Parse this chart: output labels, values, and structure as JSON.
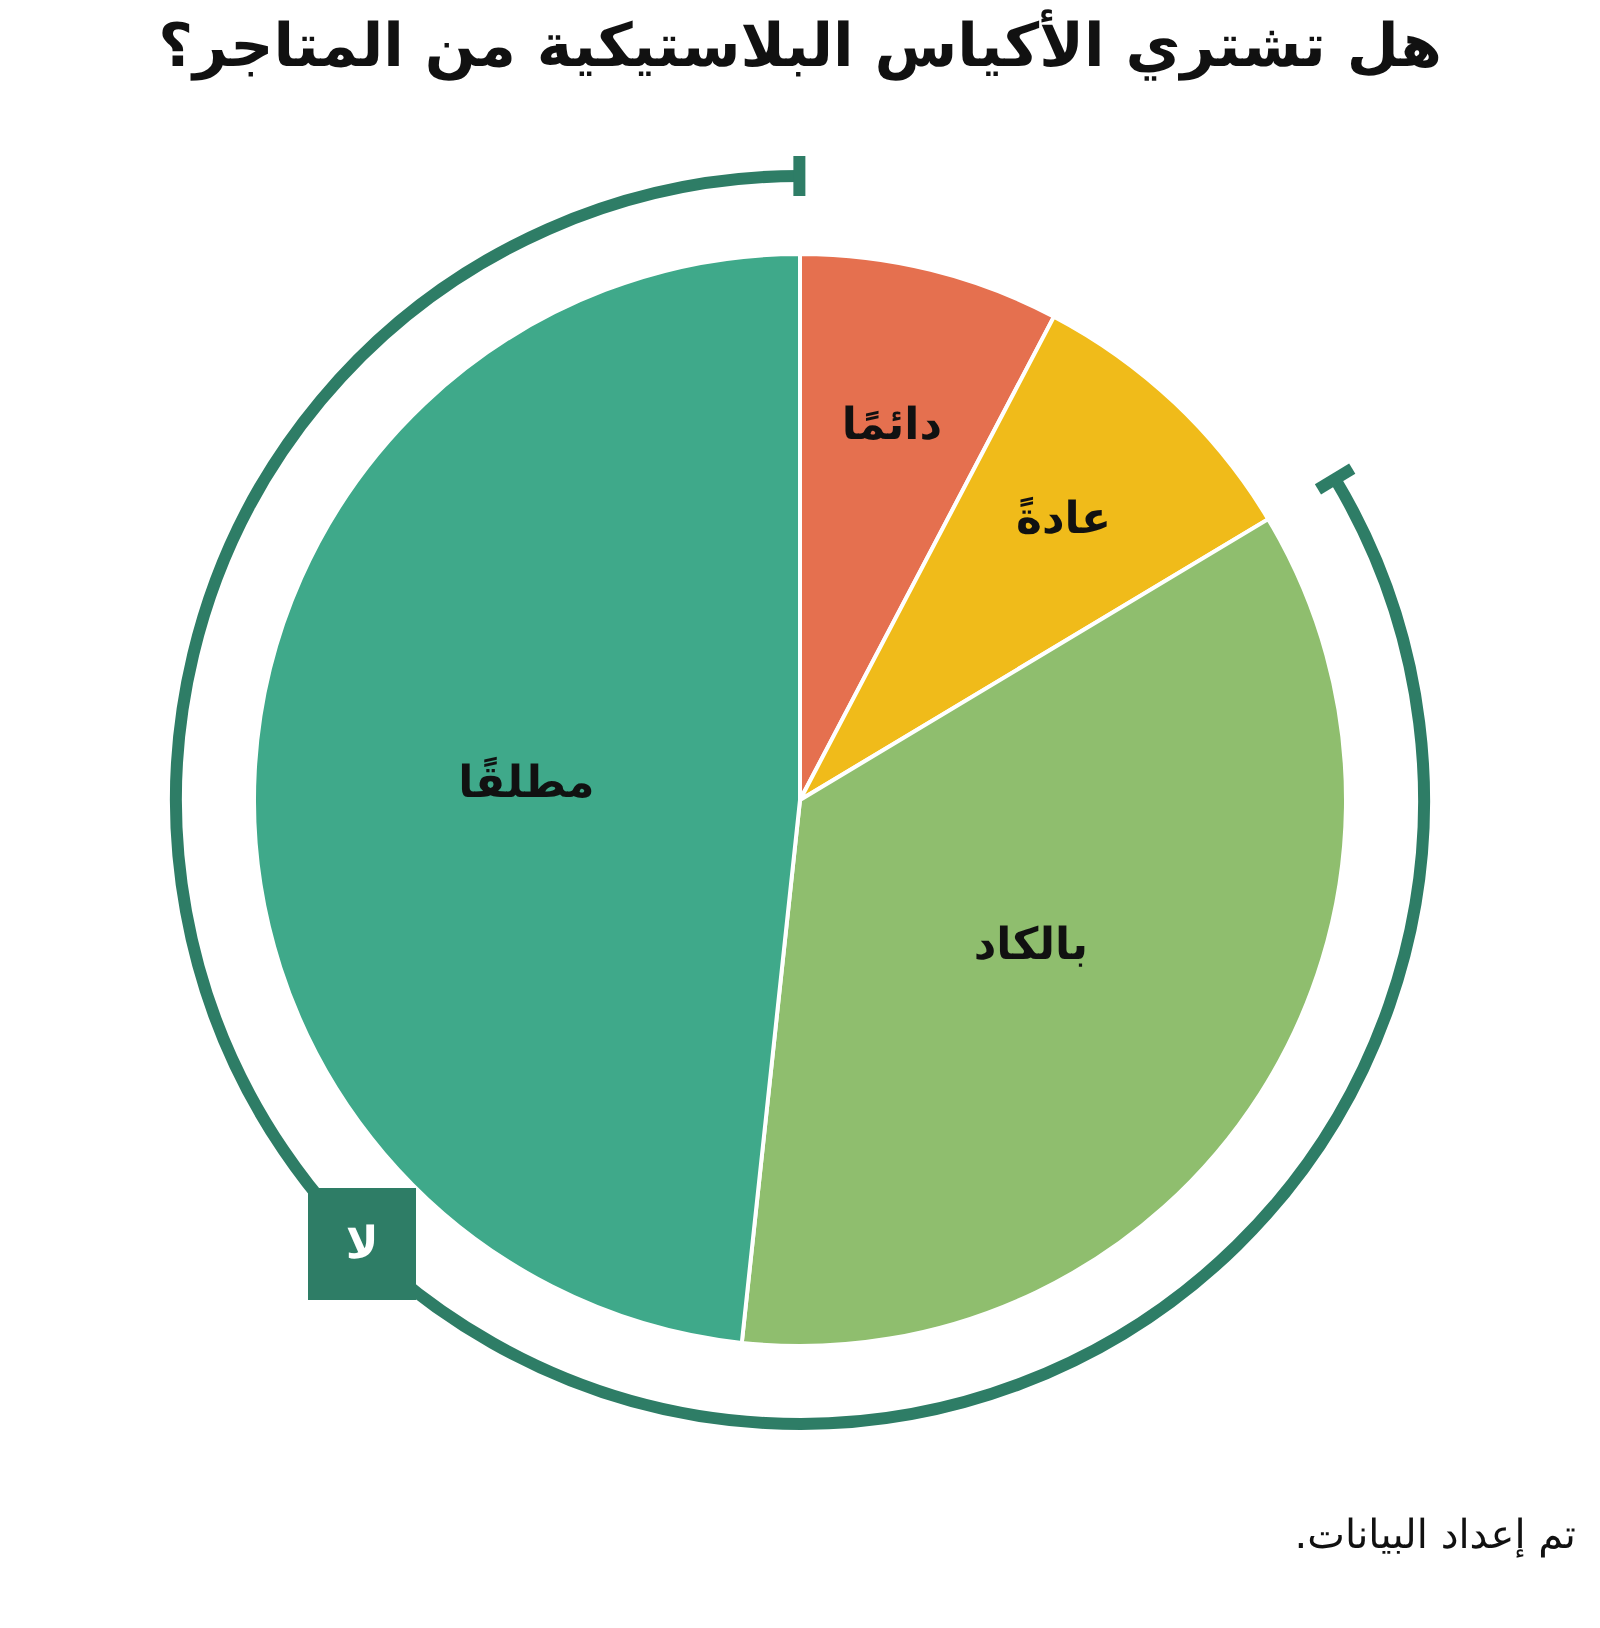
{
  "chart_data": {
    "type": "pie",
    "title": "هل تشتري الأكياس البلاستيكية من المتاجر؟",
    "categories": [
      "دائمًا",
      "عادةً",
      "بالكاد",
      "مطلقًا"
    ],
    "values": [
      7.7,
      8.7,
      35.3,
      48.3
    ],
    "colors": [
      "#e5704f",
      "#f0bb1a",
      "#8fbe6e",
      "#3fa98a"
    ],
    "legend": false,
    "annotations": [
      "لا",
      "تم إعداد البيانات."
    ]
  }
}
